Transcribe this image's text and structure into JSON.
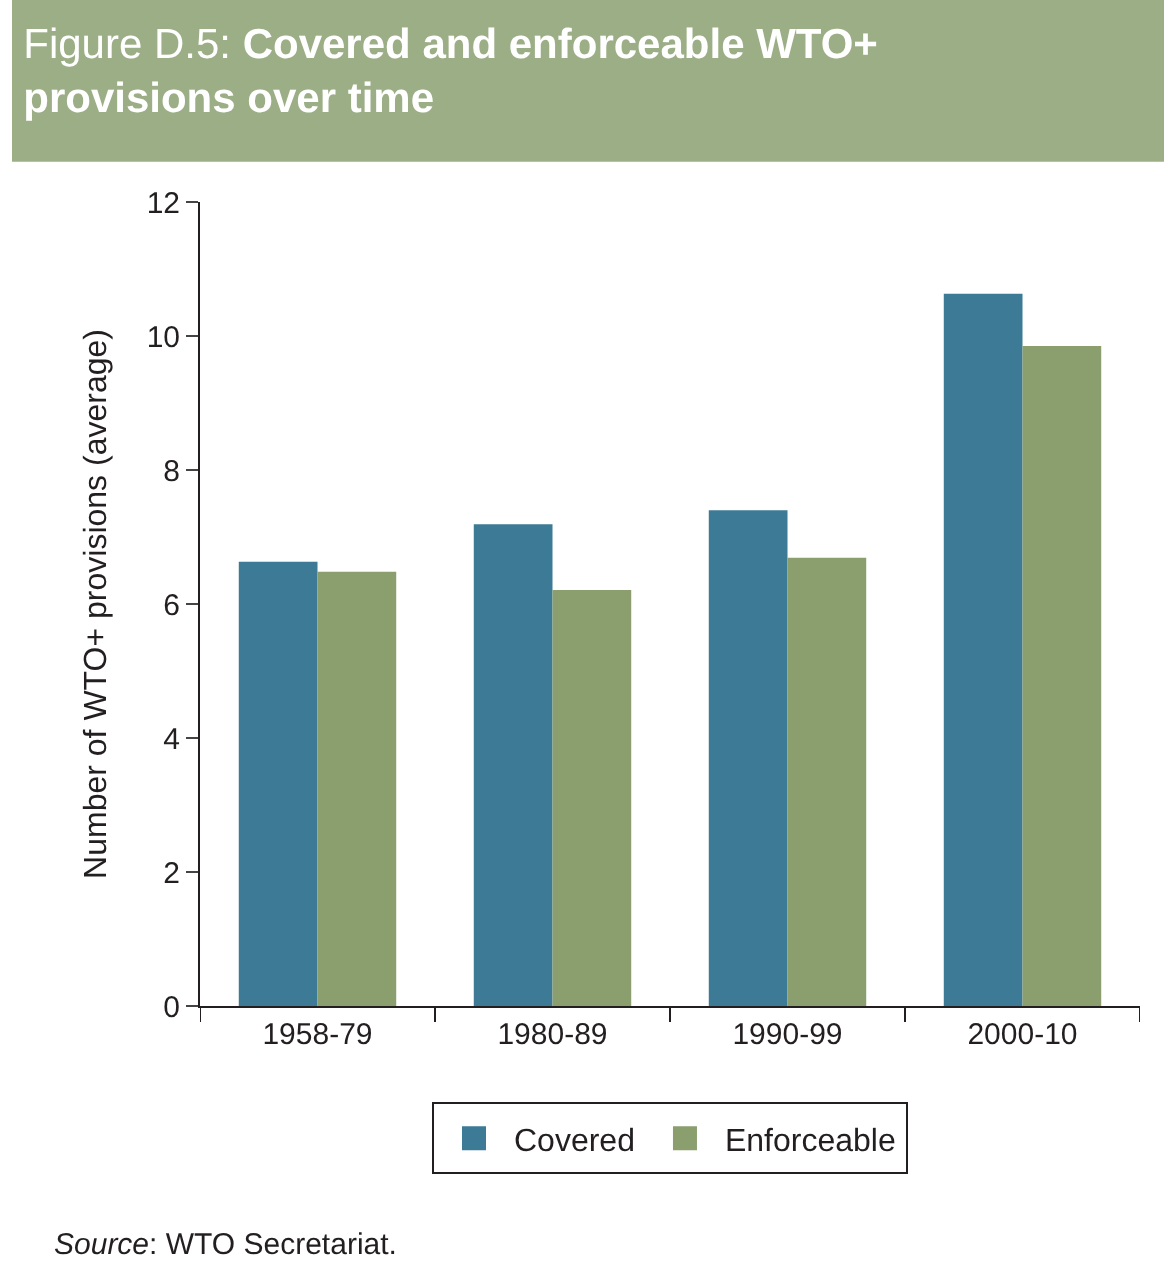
{
  "chart_data": {
    "type": "bar",
    "title": "Figure D.5: Covered and enforceable WTO+ provisions over time",
    "ylabel": "Number of WTO+ provisions (average)",
    "categories": [
      "1958-79",
      "1980-89",
      "1990-99",
      "2000-10"
    ],
    "series": [
      {
        "name": "Covered",
        "color": "#3d7a96",
        "values": [
          6.63,
          7.19,
          7.4,
          10.63
        ]
      },
      {
        "name": "Enforceable",
        "color": "#8a9e6e",
        "values": [
          6.48,
          6.21,
          6.69,
          9.85
        ]
      }
    ],
    "ylim": [
      0,
      12
    ],
    "yticks": [
      0,
      2,
      4,
      6,
      8,
      10,
      12
    ],
    "legend": "bottom",
    "annotations": [
      "Source: WTO Secretariat."
    ]
  }
}
